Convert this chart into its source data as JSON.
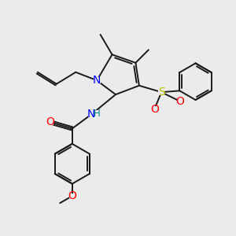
{
  "bg_color": "#ebebeb",
  "bond_color": "#1a1a1a",
  "bond_lw": 1.4,
  "N_color": "#0000ff",
  "O_color": "#ff0000",
  "S_color": "#bbbb00",
  "H_color": "#008080",
  "text_fontsize": 8.5,
  "fig_width": 3.0,
  "fig_height": 3.0,
  "dpi": 100,
  "xlim": [
    0,
    10
  ],
  "ylim": [
    0,
    10
  ]
}
